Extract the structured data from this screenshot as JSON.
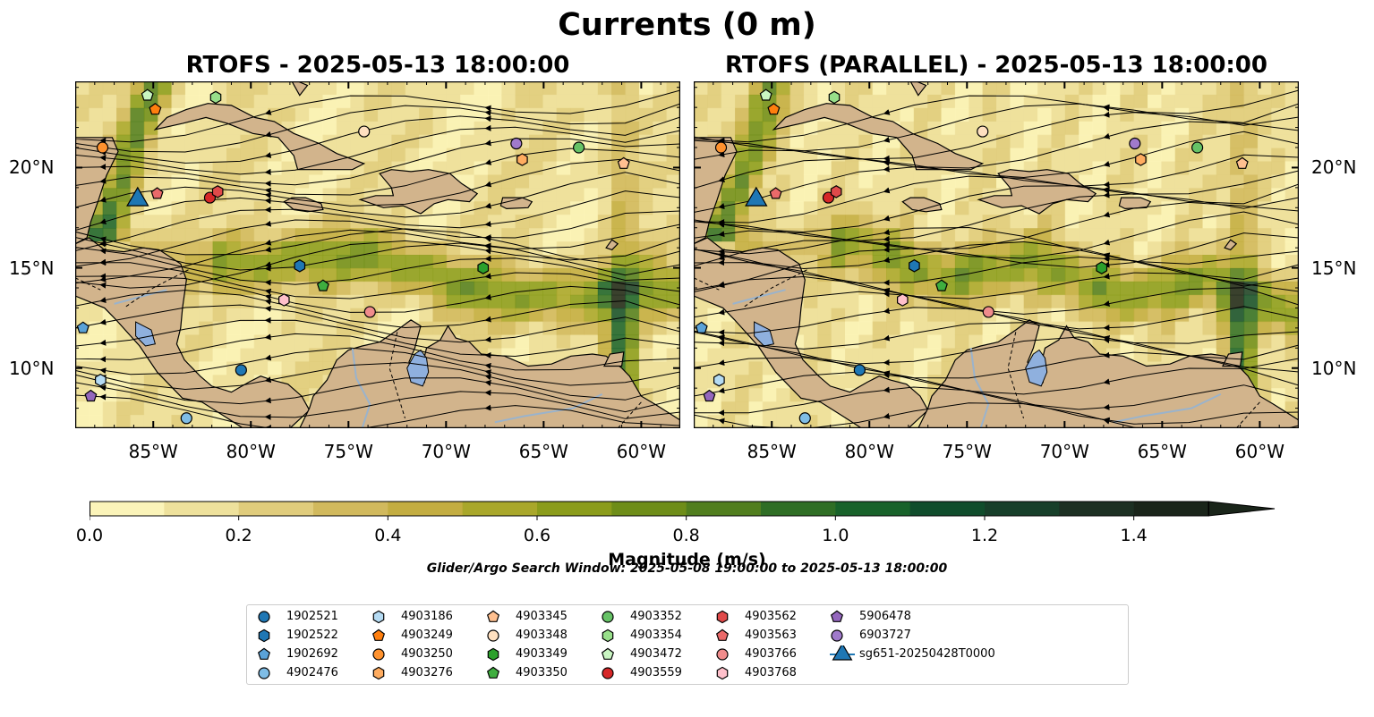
{
  "figure": {
    "suptitle": "Currents (0 m)",
    "panel_titles": [
      "RTOFS - 2025-05-13 18:00:00",
      "RTOFS (PARALLEL) - 2025-05-13 18:00:00"
    ],
    "search_window": "Glider/Argo Search Window: 2025-05-08 19:00:00 to 2025-05-13 18:00:00"
  },
  "map": {
    "lon_range": [
      -89,
      -58
    ],
    "lat_range": [
      7,
      24.3
    ],
    "lat_ticks": [
      "20°N",
      "15°N",
      "10°N"
    ],
    "lat_tick_values": [
      20,
      15,
      10
    ],
    "lon_ticks": [
      "85°W",
      "80°W",
      "75°W",
      "70°W",
      "65°W",
      "60°W"
    ],
    "lon_tick_values": [
      -85,
      -80,
      -75,
      -70,
      -65,
      -60
    ],
    "land_color": "#d2b48c",
    "lake_color": "#8fb0de",
    "river_color": "#9ab3cc"
  },
  "colorbar": {
    "label": "Magnitude (m/s)",
    "ticks": [
      "0.0",
      "0.2",
      "0.4",
      "0.6",
      "0.8",
      "1.0",
      "1.2",
      "1.4"
    ],
    "tick_values": [
      0,
      0.2,
      0.4,
      0.6,
      0.8,
      1.0,
      1.2,
      1.4
    ],
    "range": [
      0,
      1.5
    ],
    "levels": [
      "#fbf4b9",
      "#eee19c",
      "#e0cc7c",
      "#d1b95d",
      "#c3ad41",
      "#a9a72a",
      "#8b9c1b",
      "#6e8d18",
      "#517e1e",
      "#2f6e25",
      "#18622a",
      "#104d2c",
      "#173f2a",
      "#1d3023",
      "#1a251a"
    ]
  },
  "stations": [
    {
      "id": "1902521",
      "marker": "circle",
      "color": "#1f77b4",
      "lon": -80.5,
      "lat": 9.9
    },
    {
      "id": "1902522",
      "marker": "hexagon",
      "color": "#1f77b4",
      "lon": -77.5,
      "lat": 15.1
    },
    {
      "id": "1902692",
      "marker": "pentagon",
      "color": "#5aa2d8",
      "lon": -88.6,
      "lat": 12.0
    },
    {
      "id": "4902476",
      "marker": "circle",
      "color": "#7fbde6",
      "lon": -83.3,
      "lat": 7.5
    },
    {
      "id": "4903186",
      "marker": "hexagon",
      "color": "#b5dbf3",
      "lon": -87.7,
      "lat": 9.4
    },
    {
      "id": "4903249",
      "marker": "pentagon",
      "color": "#ff7f0e",
      "lon": -84.9,
      "lat": 22.9
    },
    {
      "id": "4903250",
      "marker": "circle",
      "color": "#ff922e",
      "lon": -87.6,
      "lat": 21.0
    },
    {
      "id": "4903276",
      "marker": "hexagon",
      "color": "#ffac60",
      "lon": -66.1,
      "lat": 20.4
    },
    {
      "id": "4903345",
      "marker": "pentagon",
      "color": "#ffc090",
      "lon": -60.9,
      "lat": 20.2
    },
    {
      "id": "4903348",
      "marker": "circle",
      "color": "#ffe0c0",
      "lon": -74.2,
      "lat": 21.8
    },
    {
      "id": "4903349",
      "marker": "hexagon",
      "color": "#2ca02c",
      "lon": -68.1,
      "lat": 15.0
    },
    {
      "id": "4903350",
      "marker": "pentagon",
      "color": "#3fae3f",
      "lon": -76.3,
      "lat": 14.1
    },
    {
      "id": "4903352",
      "marker": "circle",
      "color": "#66c266",
      "lon": -63.2,
      "lat": 21.0
    },
    {
      "id": "4903354",
      "marker": "hexagon",
      "color": "#98df8a",
      "lon": -81.8,
      "lat": 23.5
    },
    {
      "id": "4903472",
      "marker": "pentagon",
      "color": "#c9f5c2",
      "lon": -85.3,
      "lat": 23.6
    },
    {
      "id": "4903559",
      "marker": "circle",
      "color": "#d62728",
      "lon": -82.1,
      "lat": 18.5
    },
    {
      "id": "4903562",
      "marker": "hexagon",
      "color": "#e04a4a",
      "lon": -81.7,
      "lat": 18.8
    },
    {
      "id": "4903563",
      "marker": "pentagon",
      "color": "#ea6a6a",
      "lon": -84.8,
      "lat": 18.7
    },
    {
      "id": "4903766",
      "marker": "circle",
      "color": "#f08c8c",
      "lon": -73.9,
      "lat": 12.8
    },
    {
      "id": "4903768",
      "marker": "hexagon",
      "color": "#ffc0cb",
      "lon": -78.3,
      "lat": 13.4
    },
    {
      "id": "5906478",
      "marker": "pentagon",
      "color": "#9467bd",
      "lon": -88.2,
      "lat": 8.6
    },
    {
      "id": "6903727",
      "marker": "circle",
      "color": "#a07acb",
      "lon": -66.4,
      "lat": 21.2
    },
    {
      "id": "sg651-20250428T0000",
      "marker": "triangle",
      "color": "#1f77b4",
      "lon": -85.8,
      "lat": 18.4
    }
  ]
}
